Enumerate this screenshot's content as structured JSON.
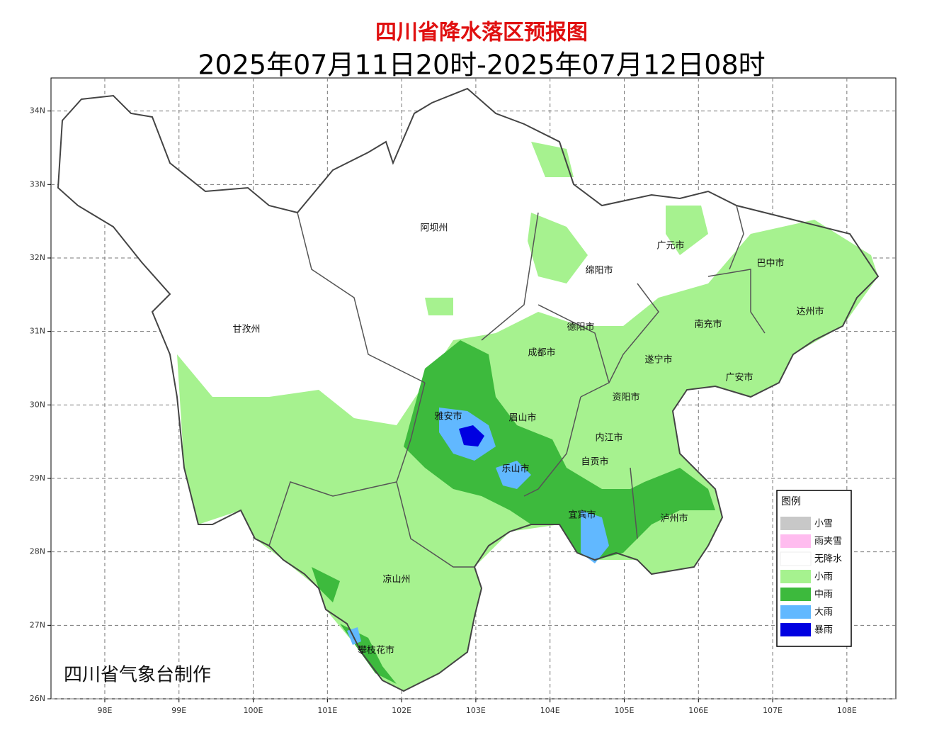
{
  "chart_data": {
    "type": "map",
    "title": "四川省降水落区预报图",
    "subtitle": "2025年07月11日20时-2025年07月12日08时",
    "xlim": [
      97.275,
      108.66
    ],
    "ylim": [
      26,
      34.45
    ],
    "xticks": [
      {
        "value": 98,
        "label": "98E"
      },
      {
        "value": 99,
        "label": "99E"
      },
      {
        "value": 100,
        "label": "100E"
      },
      {
        "value": 101,
        "label": "101E"
      },
      {
        "value": 102,
        "label": "102E"
      },
      {
        "value": 103,
        "label": "103E"
      },
      {
        "value": 104,
        "label": "104E"
      },
      {
        "value": 105,
        "label": "105E"
      },
      {
        "value": 106,
        "label": "106E"
      },
      {
        "value": 107,
        "label": "107E"
      },
      {
        "value": 108,
        "label": "108E"
      }
    ],
    "yticks": [
      {
        "value": 26,
        "label": "26N"
      },
      {
        "value": 27,
        "label": "27N"
      },
      {
        "value": 28,
        "label": "28N"
      },
      {
        "value": 29,
        "label": "29N"
      },
      {
        "value": 30,
        "label": "30N"
      },
      {
        "value": 31,
        "label": "31N"
      },
      {
        "value": 32,
        "label": "32N"
      },
      {
        "value": 33,
        "label": "33N"
      },
      {
        "value": 34,
        "label": "34N"
      }
    ],
    "grid": true,
    "places": [
      "阿坝州",
      "广元市",
      "巴中市",
      "绵阳市",
      "达州市",
      "德阳市",
      "南充市",
      "甘孜州",
      "成都市",
      "遂宁市",
      "广安市",
      "资阳市",
      "雅安市",
      "眉山市",
      "内江市",
      "乐山市",
      "自贡市",
      "宜宾市",
      "泸州市",
      "凉山州",
      "攀枝花市"
    ],
    "legend": {
      "title": "图例",
      "items": [
        {
          "name": "小雪",
          "color": "#c8c8c8"
        },
        {
          "name": "雨夹雪",
          "color": "#ffbcef"
        },
        {
          "name": "无降水",
          "color": "#ffffff"
        },
        {
          "name": "小雨",
          "color": "#a6f28f"
        },
        {
          "name": "中雨",
          "color": "#3dba3d"
        },
        {
          "name": "大雨",
          "color": "#61b8ff"
        },
        {
          "name": "暴雨",
          "color": "#0000e1"
        }
      ]
    },
    "credit": "四川省气象台制作"
  }
}
